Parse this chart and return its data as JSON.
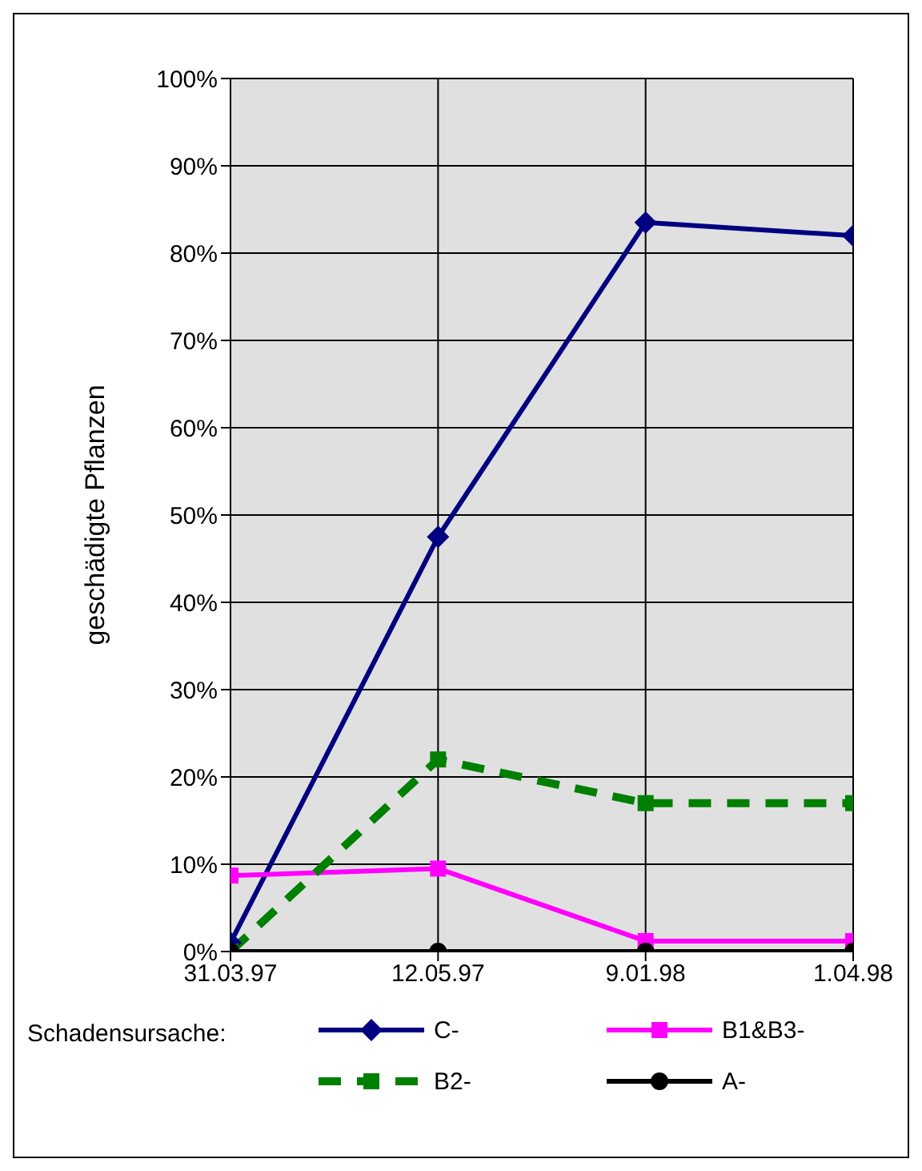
{
  "chart_data": {
    "type": "line",
    "ylabel": "geschädigte Pflanzen",
    "legend_title": "Schadensursache:",
    "legend": "bottom",
    "grid": true,
    "categories": [
      "31.03.97",
      "12.05.97",
      "9.01.98",
      "1.04.98"
    ],
    "ylim": [
      0,
      100
    ],
    "yticks": [
      {
        "value": 0,
        "label": "0%"
      },
      {
        "value": 10,
        "label": "10%"
      },
      {
        "value": 20,
        "label": "20%"
      },
      {
        "value": 30,
        "label": "30%"
      },
      {
        "value": 40,
        "label": "40%"
      },
      {
        "value": 50,
        "label": "50%"
      },
      {
        "value": 60,
        "label": "60%"
      },
      {
        "value": 70,
        "label": "70%"
      },
      {
        "value": 80,
        "label": "80%"
      },
      {
        "value": 90,
        "label": "90%"
      },
      {
        "value": 100,
        "label": "100%"
      }
    ],
    "series": [
      {
        "name": "C-",
        "color": "#000080",
        "marker": "diamond",
        "line_style": "solid",
        "values": [
          1,
          47.5,
          83.5,
          82
        ]
      },
      {
        "name": "B1&B3-",
        "color": "#ff00ff",
        "marker": "square",
        "line_style": "solid",
        "values": [
          8.7,
          9.5,
          1.2,
          1.2
        ]
      },
      {
        "name": "B2-",
        "color": "#008000",
        "marker": "square",
        "line_style": "dashed",
        "values": [
          0,
          22,
          17,
          17
        ]
      },
      {
        "name": "A-",
        "color": "#000000",
        "marker": "circle",
        "line_style": "solid",
        "values": [
          0,
          0,
          0,
          0
        ]
      }
    ]
  }
}
